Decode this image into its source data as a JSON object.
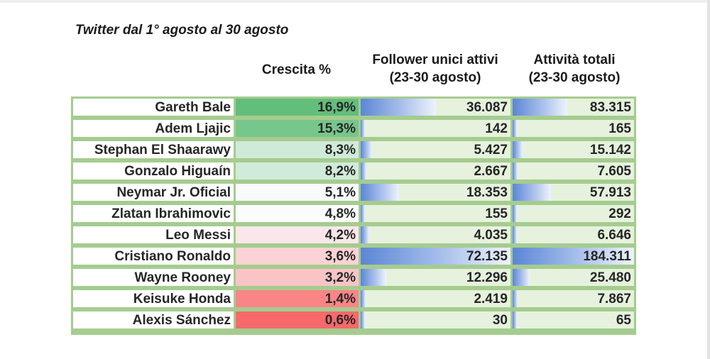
{
  "title": "Twitter dal 1° agosto al 30 agosto",
  "headers": {
    "growth": "Crescita %",
    "followers_line1": "Follower unici attivi",
    "followers_line2": "(23-30 agosto)",
    "activity_line1": "Attività totali",
    "activity_line2": "(23-30 agosto)"
  },
  "colors": {
    "border_green": "#a5cc8f",
    "cell_green": "#e6f2dd",
    "bar_blue": "#5b86d6",
    "growth_high": "#63be7b",
    "growth_mid": "#fcfcff",
    "growth_low": "#f8696b"
  },
  "chart_data": {
    "type": "table",
    "columns": [
      "",
      "Crescita %",
      "Follower unici attivi (23-30 agosto)",
      "Attività totali (23-30 agosto)"
    ],
    "rows": [
      {
        "name": "Gareth Bale",
        "growth": "16,9%",
        "growth_value": 16.9,
        "followers": "36.087",
        "followers_value": 36087,
        "activity": "83.315",
        "activity_value": 83315
      },
      {
        "name": "Adem Ljajic",
        "growth": "15,3%",
        "growth_value": 15.3,
        "followers": "142",
        "followers_value": 142,
        "activity": "165",
        "activity_value": 165
      },
      {
        "name": "Stephan El Shaarawy",
        "growth": "8,3%",
        "growth_value": 8.3,
        "followers": "5.427",
        "followers_value": 5427,
        "activity": "15.142",
        "activity_value": 15142
      },
      {
        "name": "Gonzalo Higuaín",
        "growth": "8,2%",
        "growth_value": 8.2,
        "followers": "2.667",
        "followers_value": 2667,
        "activity": "7.605",
        "activity_value": 7605
      },
      {
        "name": "Neymar Jr. Oficial",
        "growth": "5,1%",
        "growth_value": 5.1,
        "followers": "18.353",
        "followers_value": 18353,
        "activity": "57.913",
        "activity_value": 57913
      },
      {
        "name": "Zlatan Ibrahimovic",
        "growth": "4,8%",
        "growth_value": 4.8,
        "followers": "155",
        "followers_value": 155,
        "activity": "292",
        "activity_value": 292
      },
      {
        "name": "Leo Messi",
        "growth": "4,2%",
        "growth_value": 4.2,
        "followers": "4.035",
        "followers_value": 4035,
        "activity": "6.646",
        "activity_value": 6646
      },
      {
        "name": "Cristiano Ronaldo",
        "growth": "3,6%",
        "growth_value": 3.6,
        "followers": "72.135",
        "followers_value": 72135,
        "activity": "184.311",
        "activity_value": 184311
      },
      {
        "name": "Wayne Rooney",
        "growth": "3,2%",
        "growth_value": 3.2,
        "followers": "12.296",
        "followers_value": 12296,
        "activity": "25.480",
        "activity_value": 25480
      },
      {
        "name": "Keisuke Honda",
        "growth": "1,4%",
        "growth_value": 1.4,
        "followers": "2.419",
        "followers_value": 2419,
        "activity": "7.867",
        "activity_value": 7867
      },
      {
        "name": "Alexis Sánchez",
        "growth": "0,6%",
        "growth_value": 0.6,
        "followers": "30",
        "followers_value": 30,
        "activity": "65",
        "activity_value": 65
      }
    ]
  }
}
